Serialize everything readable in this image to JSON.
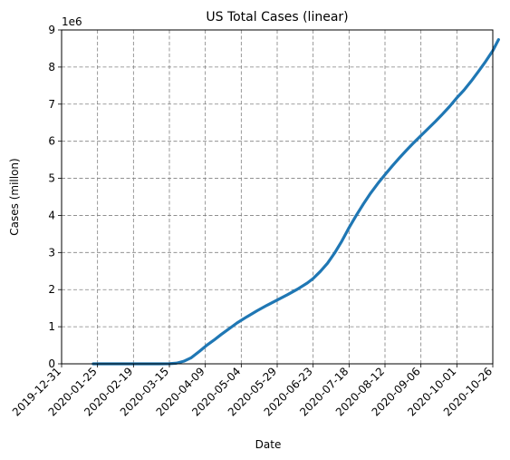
{
  "chart_data": {
    "type": "line",
    "title": "US Total Cases (linear)",
    "xlabel": "Date",
    "ylabel": "Cases (millon)",
    "y_offset_label": "1e6",
    "x_axis_type": "date",
    "xlim": [
      "2019-12-31",
      "2020-10-26"
    ],
    "ylim": [
      0,
      9000000
    ],
    "x_ticks": [
      "2019-12-31",
      "2020-01-25",
      "2020-02-19",
      "2020-03-15",
      "2020-04-09",
      "2020-05-04",
      "2020-05-29",
      "2020-06-23",
      "2020-07-18",
      "2020-08-12",
      "2020-09-06",
      "2020-10-01",
      "2020-10-26"
    ],
    "y_ticks": [
      0,
      1000000,
      2000000,
      3000000,
      4000000,
      5000000,
      6000000,
      7000000,
      8000000,
      9000000
    ],
    "y_tick_labels": [
      "0",
      "1",
      "2",
      "3",
      "4",
      "5",
      "6",
      "7",
      "8",
      "9"
    ],
    "grid": true,
    "series": [
      {
        "color": "#1f77b4",
        "x": [
          "2020-01-22",
          "2020-02-01",
          "2020-02-15",
          "2020-03-01",
          "2020-03-08",
          "2020-03-15",
          "2020-03-20",
          "2020-03-25",
          "2020-03-30",
          "2020-04-05",
          "2020-04-10",
          "2020-04-15",
          "2020-04-20",
          "2020-04-25",
          "2020-05-01",
          "2020-05-08",
          "2020-05-15",
          "2020-05-22",
          "2020-05-29",
          "2020-06-05",
          "2020-06-12",
          "2020-06-19",
          "2020-06-23",
          "2020-06-28",
          "2020-07-03",
          "2020-07-08",
          "2020-07-13",
          "2020-07-18",
          "2020-07-23",
          "2020-07-28",
          "2020-08-02",
          "2020-08-07",
          "2020-08-12",
          "2020-08-17",
          "2020-08-22",
          "2020-08-27",
          "2020-09-01",
          "2020-09-06",
          "2020-09-11",
          "2020-09-16",
          "2020-09-21",
          "2020-09-26",
          "2020-10-01",
          "2020-10-06",
          "2020-10-11",
          "2020-10-16",
          "2020-10-21",
          "2020-10-26",
          "2020-10-30"
        ],
        "values": [
          1,
          8,
          15,
          75,
          500,
          3500,
          18000,
          70000,
          160000,
          340000,
          500000,
          640000,
          790000,
          930000,
          1100000,
          1270000,
          1430000,
          1580000,
          1720000,
          1860000,
          2010000,
          2180000,
          2300000,
          2490000,
          2710000,
          2990000,
          3310000,
          3670000,
          4000000,
          4310000,
          4600000,
          4860000,
          5100000,
          5330000,
          5550000,
          5760000,
          5960000,
          6150000,
          6340000,
          6530000,
          6730000,
          6940000,
          7170000,
          7380000,
          7620000,
          7880000,
          8150000,
          8440000,
          8740000
        ]
      }
    ]
  }
}
